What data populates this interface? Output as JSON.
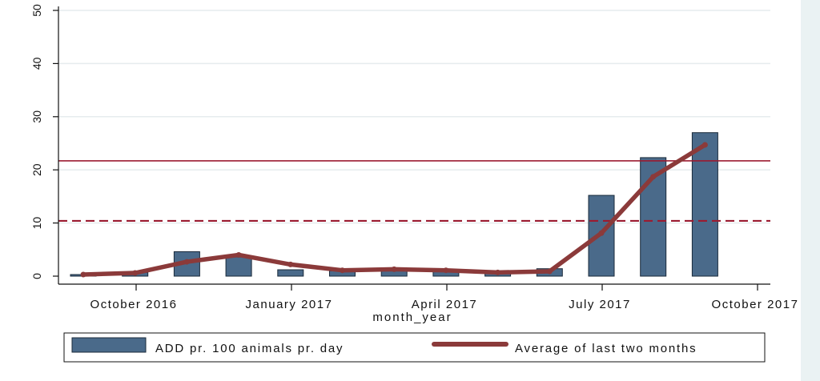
{
  "chart_data": {
    "type": "bar",
    "title": "",
    "xlabel": "month_year",
    "ylabel": "",
    "ylim": [
      0,
      50
    ],
    "yticks": [
      0,
      10,
      20,
      30,
      40,
      50
    ],
    "x_ticks": [
      "October 2016",
      "January 2017",
      "April 2017",
      "July 2017",
      "October 2017"
    ],
    "categories": [
      "2016-09",
      "2016-10",
      "2016-11",
      "2016-12",
      "2017-01",
      "2017-02",
      "2017-03",
      "2017-04",
      "2017-05",
      "2017-06",
      "2017-07",
      "2017-08",
      "2017-09"
    ],
    "series": [
      {
        "name": "ADD pr. 100 animals pr. day",
        "type": "bar",
        "color": "#4a6a8a",
        "values": [
          0.3,
          0.7,
          4.6,
          3.6,
          1.2,
          1.0,
          1.4,
          1.0,
          0.6,
          1.4,
          15.2,
          22.3,
          27.0
        ]
      },
      {
        "name": "Average of last two months",
        "type": "line",
        "color": "#8b3a3a",
        "values": [
          0.3,
          0.6,
          2.7,
          4.0,
          2.2,
          1.1,
          1.3,
          1.1,
          0.7,
          0.9,
          8.1,
          18.7,
          24.7
        ]
      }
    ],
    "reference_lines": [
      {
        "style": "solid",
        "color": "#9b1b30",
        "value": 21.7
      },
      {
        "style": "dashed",
        "color": "#9b1b30",
        "value": 10.4
      }
    ],
    "grid": true,
    "legend_position": "bottom"
  }
}
